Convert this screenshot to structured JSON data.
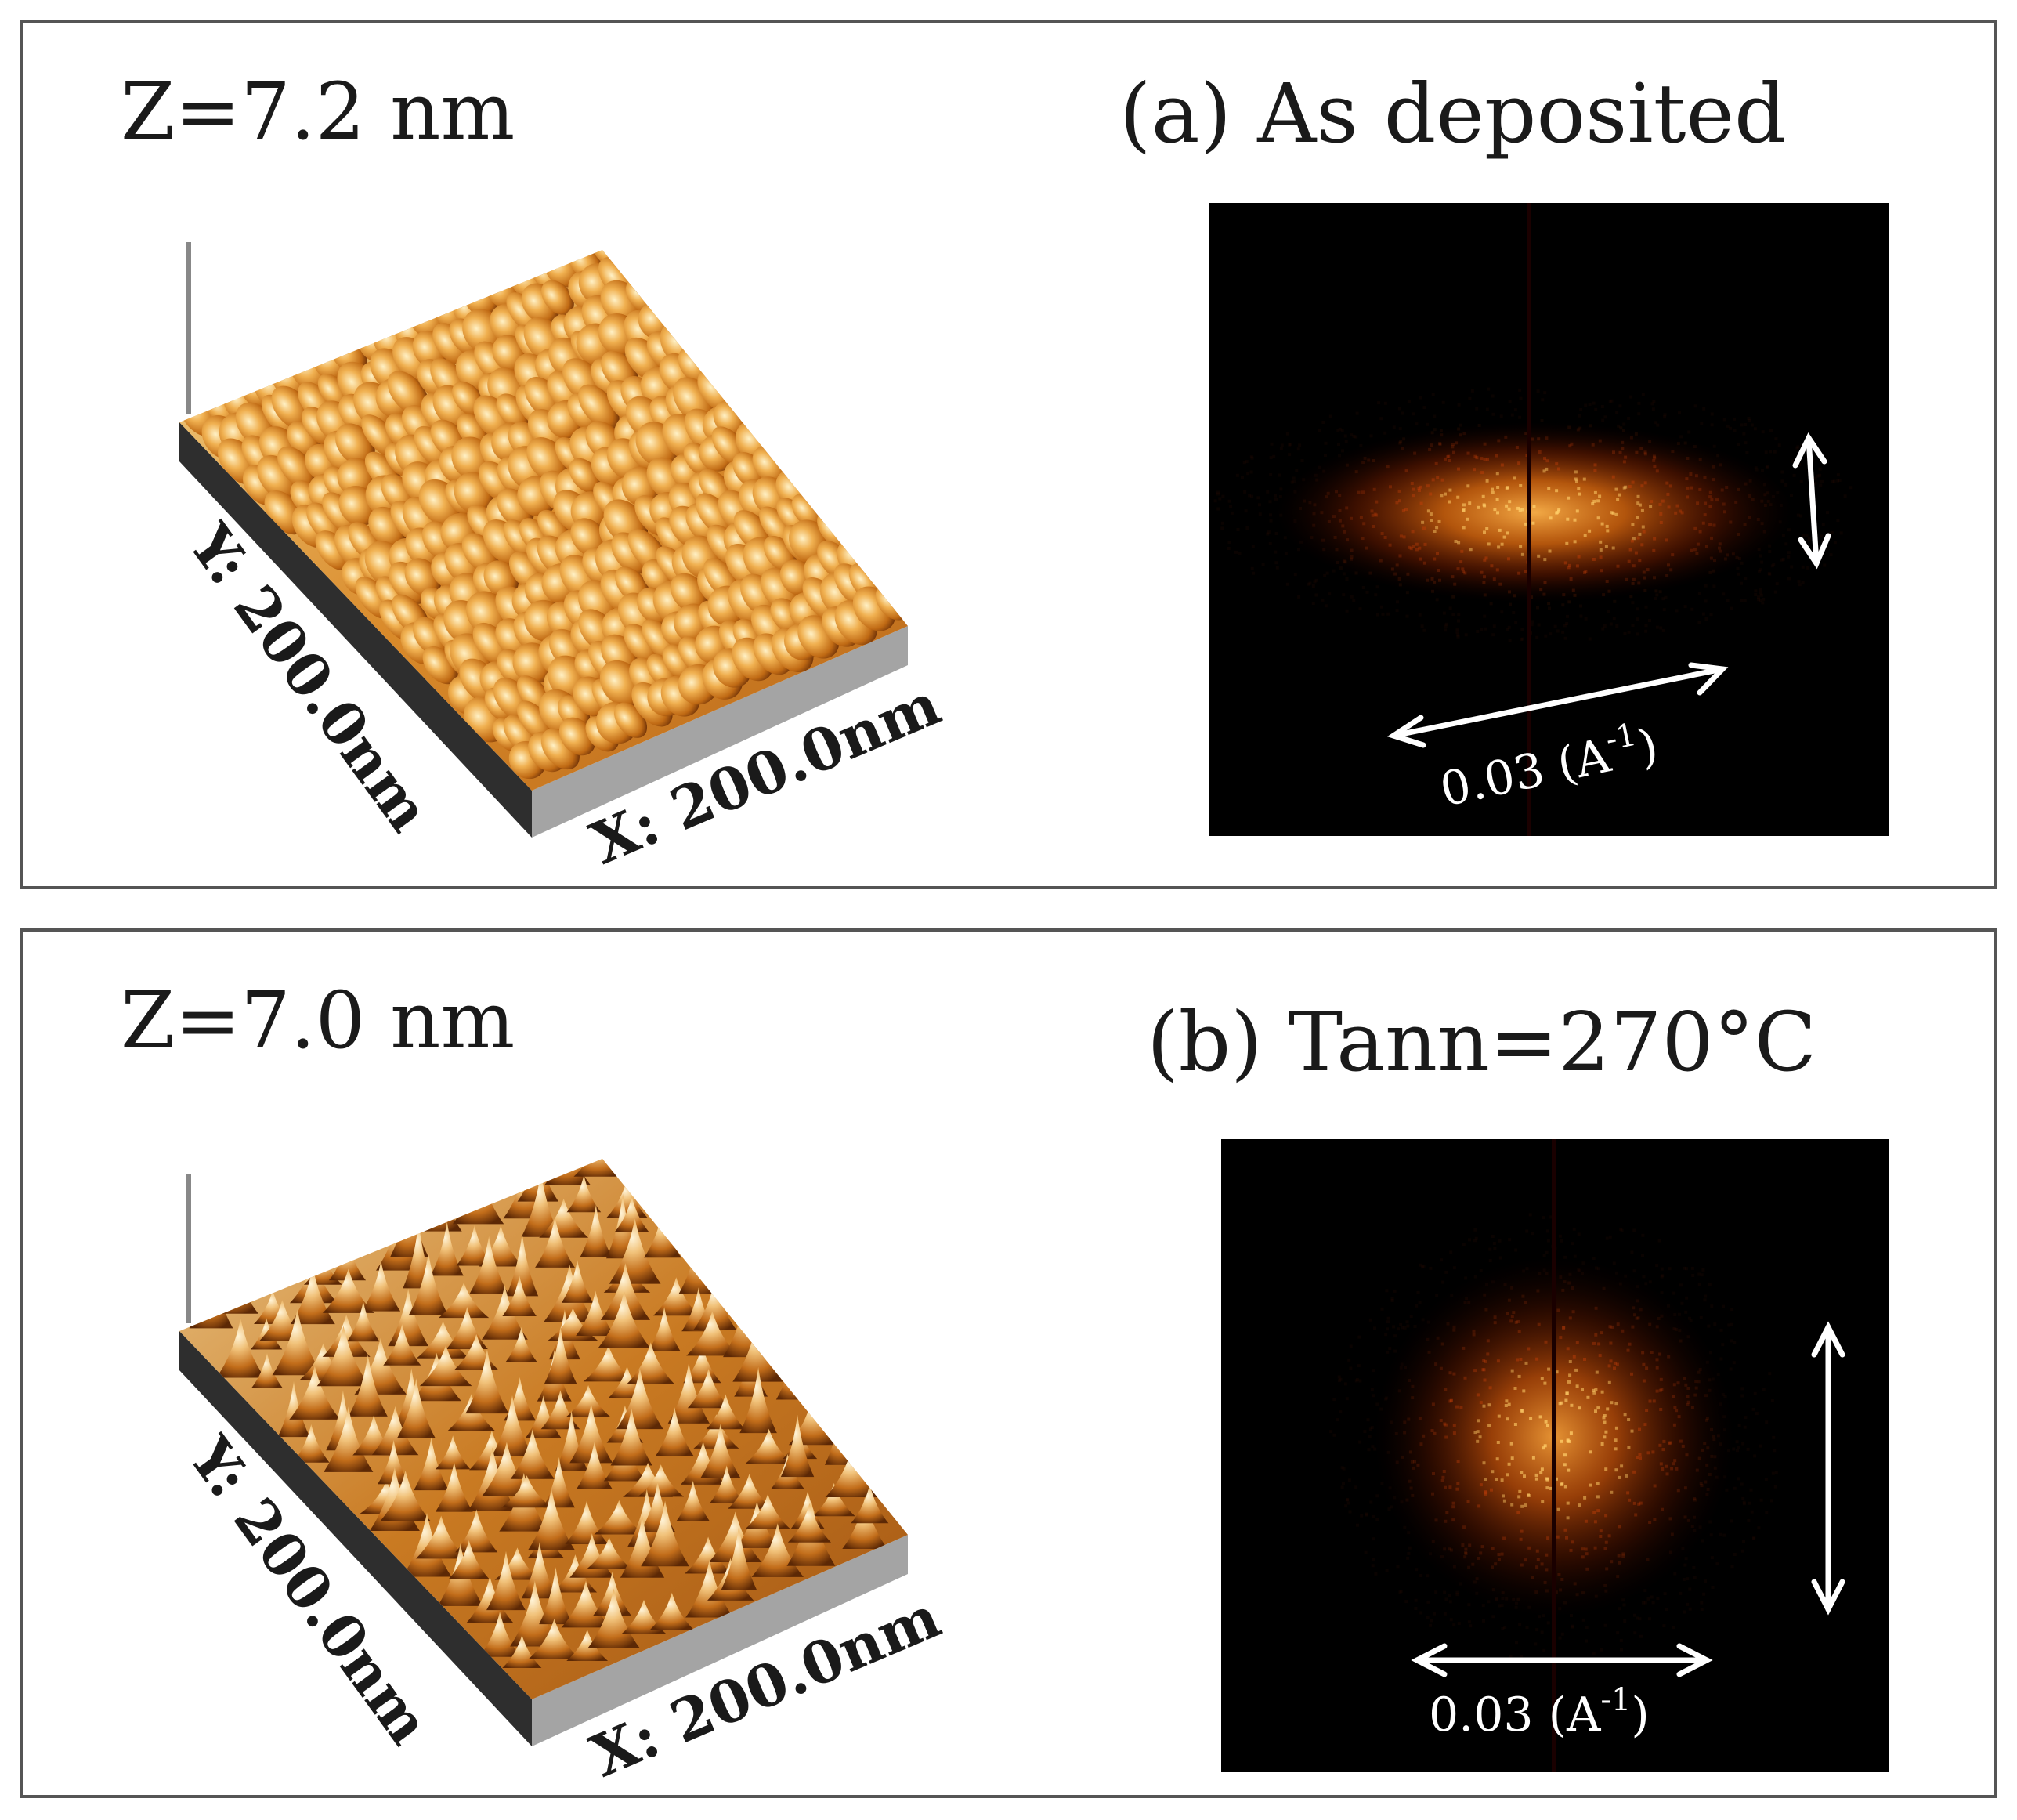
{
  "panels": [
    {
      "z_label": "Z=7.2 nm",
      "title": "(a) As deposited",
      "x_axis_label": "X: 200.0nm",
      "y_axis_label": "Y: 200.0nm",
      "scale_value": "0.03 (A",
      "scale_sup": "-1",
      "scale_close": ")",
      "fft_pattern": "horizontal-ellipse"
    },
    {
      "z_label": "Z=7.0 nm",
      "title": "(b) Tann=270°C",
      "x_axis_label": "X: 200.0nm",
      "y_axis_label": "Y: 200.0nm",
      "scale_value": "0.03 (A",
      "scale_sup": "-1",
      "scale_close": ")",
      "fft_pattern": "isotropic-disc"
    }
  ],
  "colors": {
    "surface_highlight": "#f6dfa0",
    "surface_mid": "#e09a35",
    "surface_dark": "#7a3a08",
    "base_side": "#8d8d8d",
    "base_front": "#a4a4a4",
    "fft_background": "#000000",
    "fft_glow": "#ff8a1c",
    "arrow": "#ffffff"
  }
}
